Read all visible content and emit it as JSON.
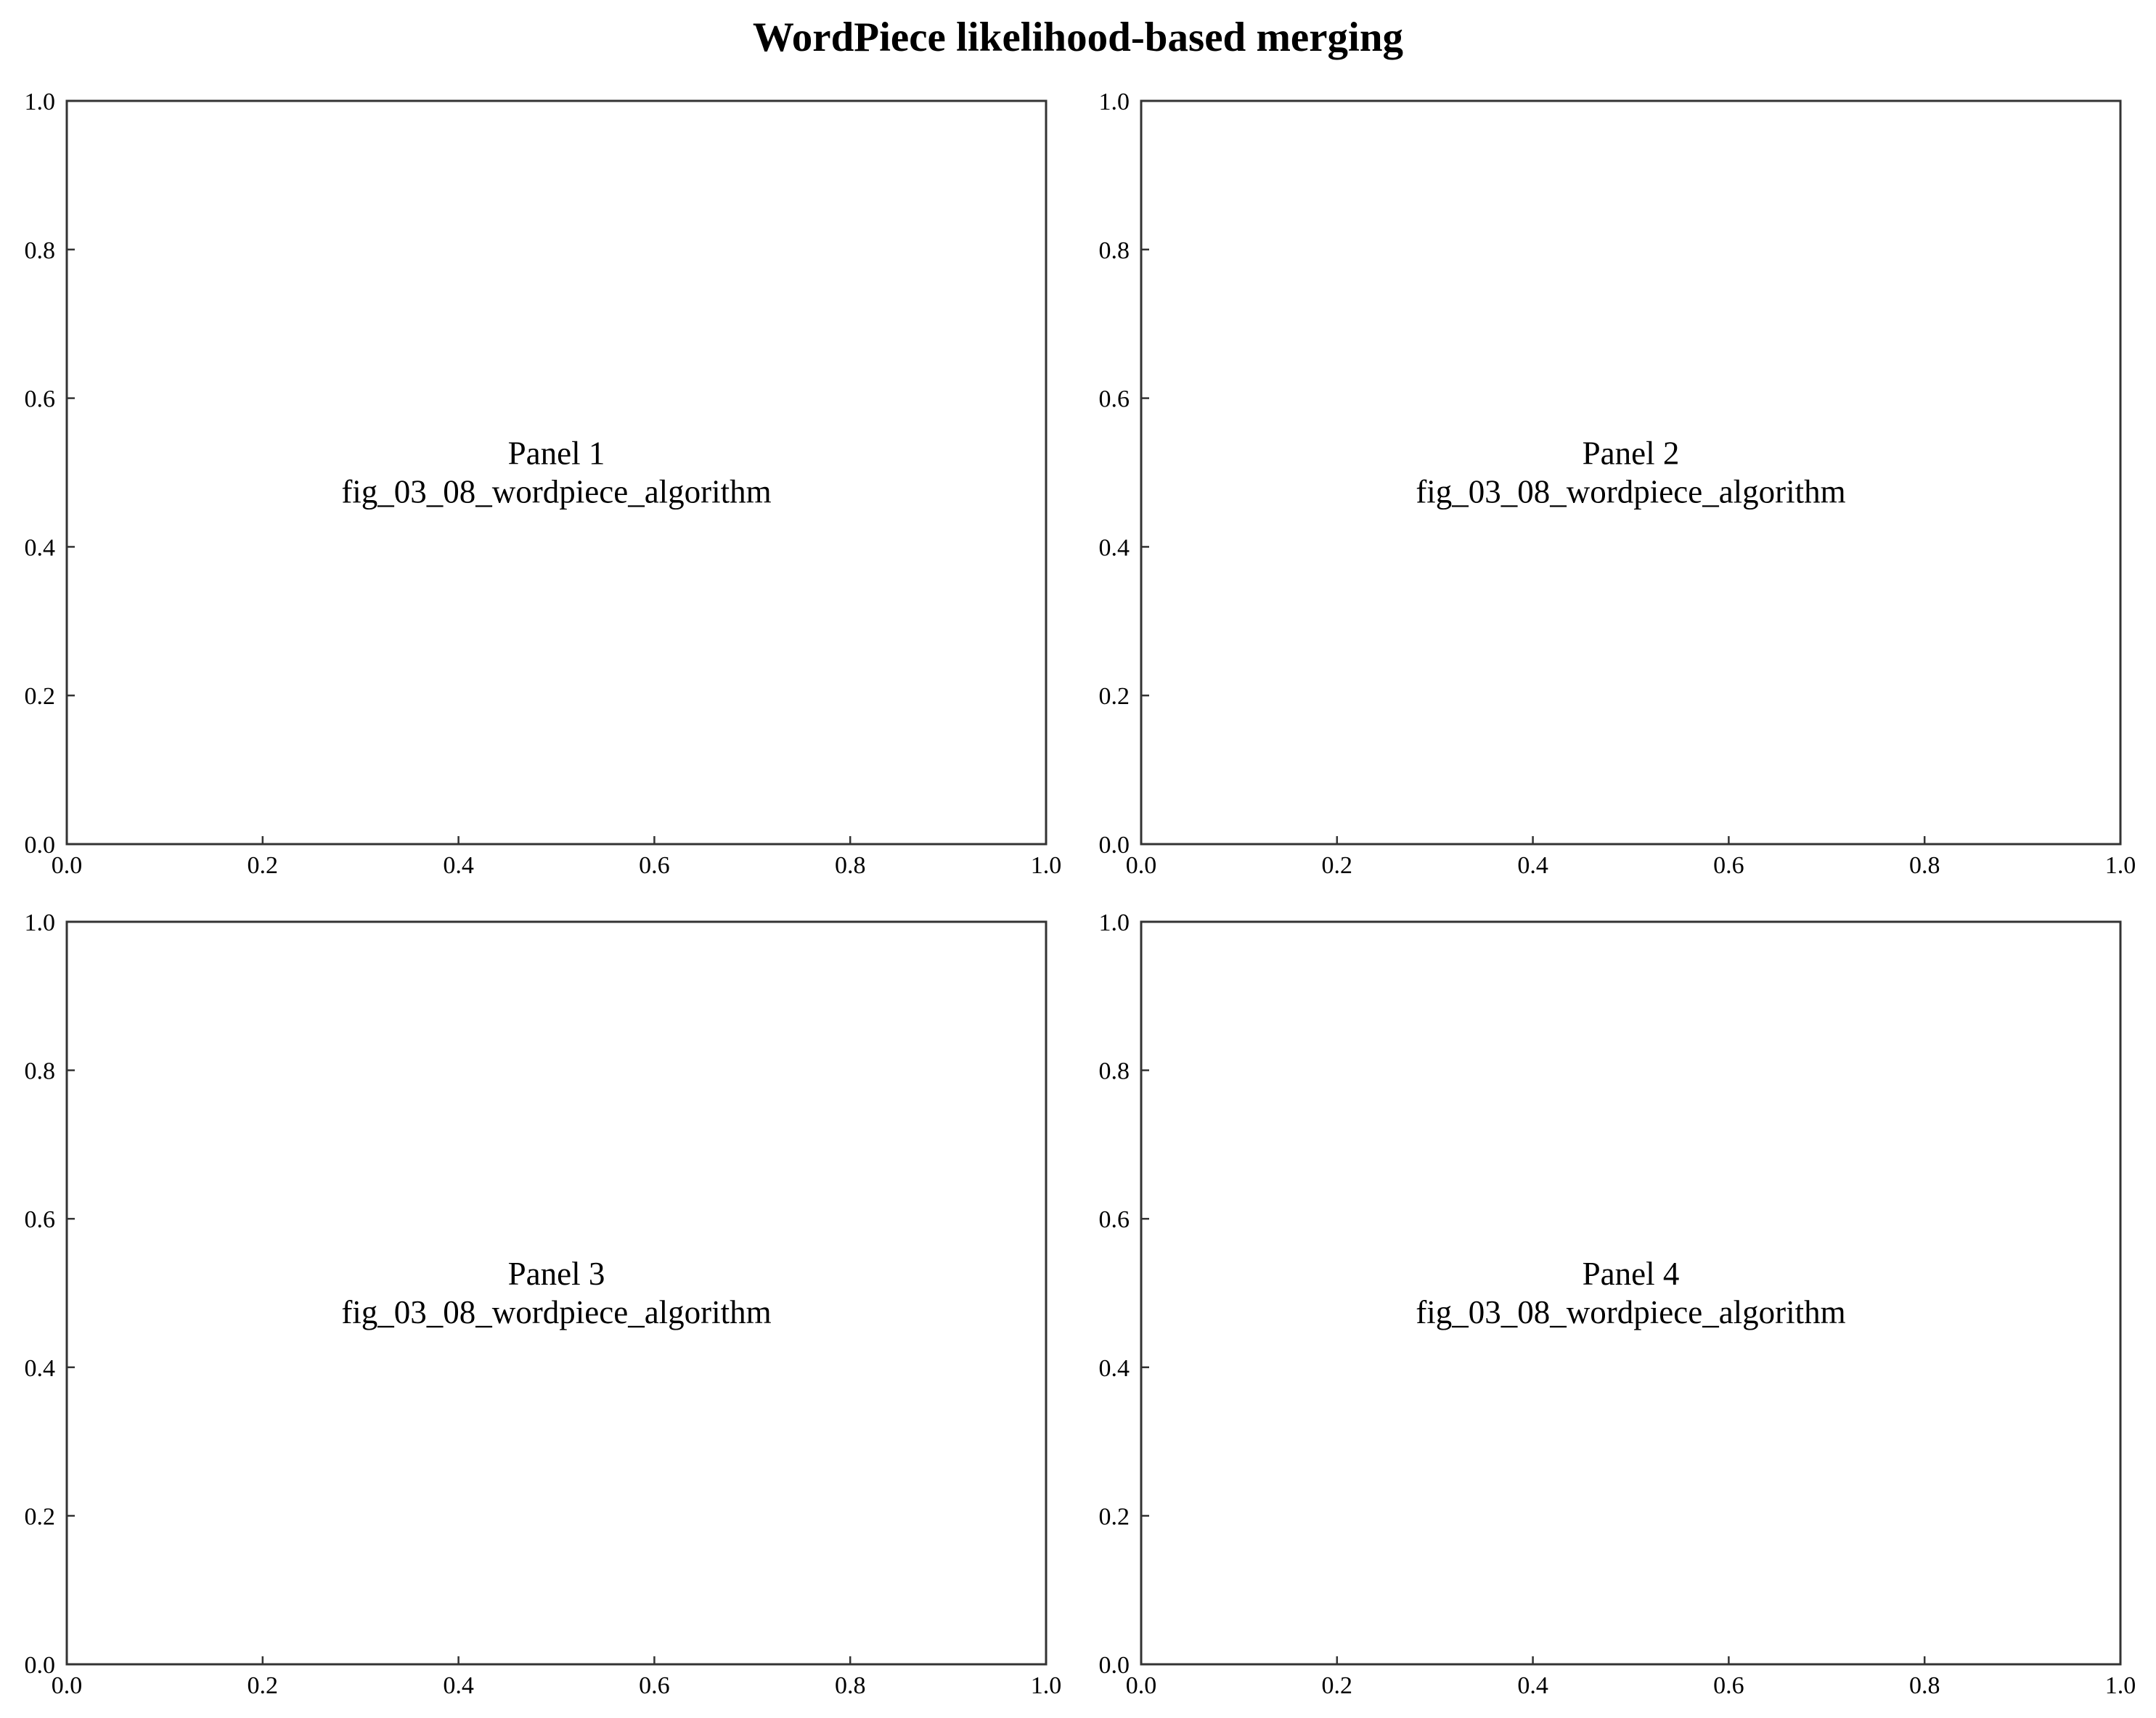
{
  "figure_title": "WordPiece likelihood-based merging",
  "chart_data": [
    {
      "type": "scatter",
      "title": "",
      "xlabel": "",
      "ylabel": "",
      "xlim": [
        0.0,
        1.0
      ],
      "ylim": [
        0.0,
        1.0
      ],
      "xticks": [
        "0.0",
        "0.2",
        "0.4",
        "0.6",
        "0.8",
        "1.0"
      ],
      "yticks": [
        "0.0",
        "0.2",
        "0.4",
        "0.6",
        "0.8",
        "1.0"
      ],
      "grid": true,
      "series": [],
      "annotation": {
        "x": 0.5,
        "y": 0.5,
        "lines": [
          "Panel 1",
          "fig_03_08_wordpiece_algorithm"
        ]
      }
    },
    {
      "type": "scatter",
      "title": "",
      "xlabel": "",
      "ylabel": "",
      "xlim": [
        0.0,
        1.0
      ],
      "ylim": [
        0.0,
        1.0
      ],
      "xticks": [
        "0.0",
        "0.2",
        "0.4",
        "0.6",
        "0.8",
        "1.0"
      ],
      "yticks": [
        "0.0",
        "0.2",
        "0.4",
        "0.6",
        "0.8",
        "1.0"
      ],
      "grid": true,
      "series": [],
      "annotation": {
        "x": 0.5,
        "y": 0.5,
        "lines": [
          "Panel 2",
          "fig_03_08_wordpiece_algorithm"
        ]
      }
    },
    {
      "type": "scatter",
      "title": "",
      "xlabel": "",
      "ylabel": "",
      "xlim": [
        0.0,
        1.0
      ],
      "ylim": [
        0.0,
        1.0
      ],
      "xticks": [
        "0.0",
        "0.2",
        "0.4",
        "0.6",
        "0.8",
        "1.0"
      ],
      "yticks": [
        "0.0",
        "0.2",
        "0.4",
        "0.6",
        "0.8",
        "1.0"
      ],
      "grid": true,
      "series": [],
      "annotation": {
        "x": 0.5,
        "y": 0.5,
        "lines": [
          "Panel 3",
          "fig_03_08_wordpiece_algorithm"
        ]
      }
    },
    {
      "type": "scatter",
      "title": "",
      "xlabel": "",
      "ylabel": "",
      "xlim": [
        0.0,
        1.0
      ],
      "ylim": [
        0.0,
        1.0
      ],
      "xticks": [
        "0.0",
        "0.2",
        "0.4",
        "0.6",
        "0.8",
        "1.0"
      ],
      "yticks": [
        "0.0",
        "0.2",
        "0.4",
        "0.6",
        "0.8",
        "1.0"
      ],
      "grid": true,
      "series": [],
      "annotation": {
        "x": 0.5,
        "y": 0.5,
        "lines": [
          "Panel 4",
          "fig_03_08_wordpiece_algorithm"
        ]
      }
    }
  ]
}
